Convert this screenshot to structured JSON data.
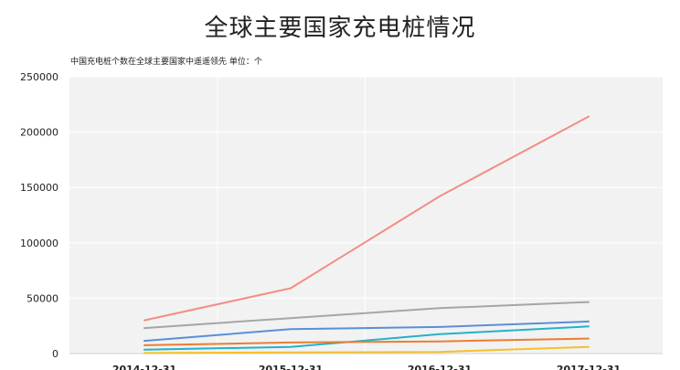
{
  "chart_data": {
    "type": "line",
    "title": "全球主要国家充电桩情况",
    "subtitle": "中国充电桩个数在全球主要国家中遥遥领先  单位：个",
    "x": [
      "2014-12-31",
      "2015-12-31",
      "2016-12-31",
      "2017-12-31"
    ],
    "ylim": [
      0,
      250000
    ],
    "yticks": [
      "0",
      "50000",
      "100000",
      "150000",
      "200000",
      "250000"
    ],
    "yticks_values": [
      0,
      50000,
      100000,
      150000,
      200000,
      250000
    ],
    "grid": true,
    "legend": "none",
    "series": [
      {
        "color": "#f28e84",
        "values": [
          30000,
          59000,
          142000,
          214000
        ]
      },
      {
        "color": "#a6a6a6",
        "values": [
          23000,
          32000,
          41000,
          46500
        ]
      },
      {
        "color": "#5b8fd6",
        "values": [
          11500,
          22000,
          24000,
          29000
        ]
      },
      {
        "color": "#22b3c9",
        "values": [
          3500,
          6000,
          17500,
          24500
        ]
      },
      {
        "color": "#ed7d31",
        "values": [
          7500,
          10000,
          11000,
          13500
        ]
      },
      {
        "color": "#f5c02a",
        "values": [
          500,
          1000,
          1500,
          6000
        ]
      }
    ]
  }
}
